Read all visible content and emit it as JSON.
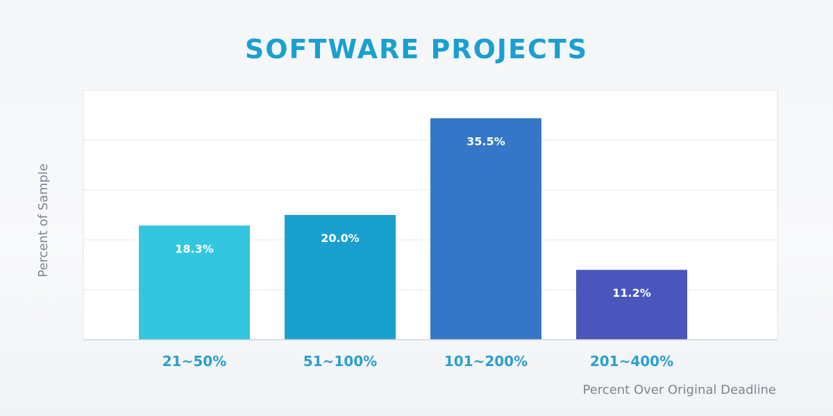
{
  "chart_data": {
    "type": "bar",
    "title": "SOFTWARE PROJECTS",
    "xlabel": "Percent Over Original Deadline",
    "ylabel": "Percent of Sample",
    "categories": [
      "21~50%",
      "51~100%",
      "101~200%",
      "201~400%"
    ],
    "values": [
      18.3,
      20.0,
      35.5,
      11.2
    ],
    "data_labels": [
      "18.3%",
      "20.0%",
      "35.5%",
      "11.2%"
    ],
    "ylim": [
      0,
      40
    ],
    "grid": true,
    "legend": "none"
  },
  "colors": {
    "title": "#1aa0d0",
    "bars": [
      "#33c6e0",
      "#1aa0cf",
      "#3577c6",
      "#4a56bb"
    ],
    "tick_text": "#2b9fce",
    "axis_text": "#7d8590",
    "grid": "#e4e7eb",
    "plot_background": "#ffffff"
  }
}
